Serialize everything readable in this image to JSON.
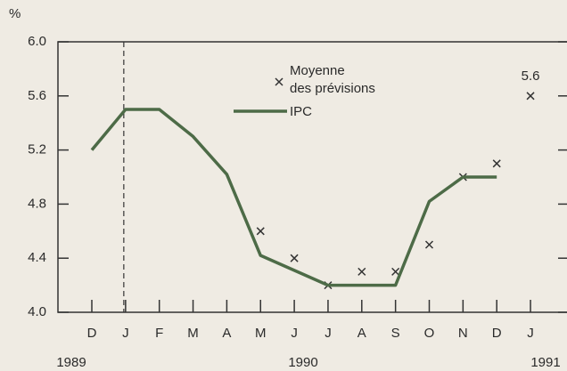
{
  "chart_data": {
    "type": "line",
    "y_label": "%",
    "categories": [
      "D",
      "J",
      "F",
      "M",
      "A",
      "M",
      "J",
      "J",
      "A",
      "S",
      "O",
      "N",
      "D",
      "J"
    ],
    "years": [
      "1989",
      "1990",
      "1991"
    ],
    "series": [
      {
        "name": "Moyenne des prévisions",
        "color": "#333333",
        "marker": "x",
        "values": [
          null,
          null,
          null,
          null,
          null,
          4.6,
          4.4,
          4.2,
          4.3,
          4.3,
          4.5,
          5.0,
          5.1,
          5.6
        ],
        "value_labels": [
          null,
          null,
          null,
          null,
          null,
          null,
          null,
          null,
          null,
          null,
          null,
          null,
          null,
          "5.6"
        ]
      },
      {
        "name": "IPC",
        "color": "#4d6b47",
        "marker": "line",
        "values": [
          5.2,
          5.5,
          5.5,
          5.3,
          5.02,
          4.42,
          4.31,
          4.2,
          4.2,
          4.2,
          4.82,
          5.0,
          5.0,
          null
        ]
      }
    ],
    "ylim": [
      4.0,
      6.0
    ],
    "yticks": [
      {
        "value": 4.0,
        "label": "4.0"
      },
      4.4,
      4.8,
      5.2,
      5.6,
      {
        "value": 6.0,
        "label": "6.0"
      }
    ]
  }
}
